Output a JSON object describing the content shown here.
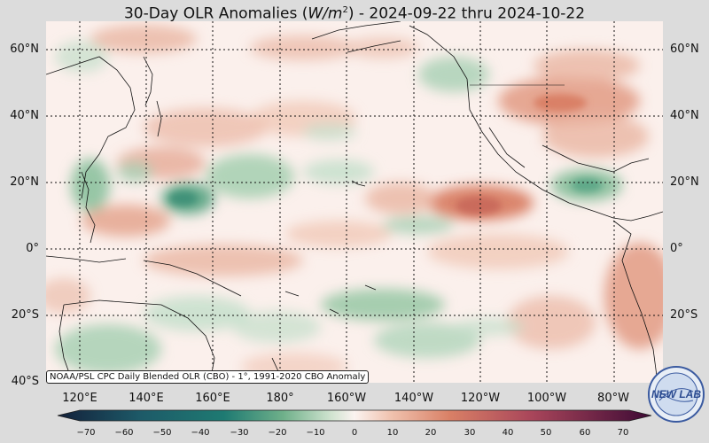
{
  "header": {
    "title_prefix": "30-Day OLR Anomalies (",
    "unit_base": "W/m",
    "unit_exp": "2",
    "title_suffix": ") - 2024-09-22 thru 2024-10-22"
  },
  "map": {
    "lat_labels": [
      "60°N",
      "40°N",
      "20°N",
      "0°",
      "20°S",
      "40°S"
    ],
    "lon_labels": [
      "120°E",
      "140°E",
      "160°E",
      "180°",
      "160°W",
      "140°W",
      "120°W",
      "100°W",
      "80°W"
    ],
    "credit": "NOAA/PSL CPC Daily Blended OLR (CBO) - 1°, 1991-2020 CBO Anomaly",
    "logo_text": "NEW LAB",
    "anomaly_regions": [
      {
        "name": "west-pacific-warm-pool",
        "sign": "negative",
        "level": -20
      },
      {
        "name": "south-pacific-convergence-zone",
        "sign": "negative",
        "level": -15
      },
      {
        "name": "gulf-of-mexico",
        "sign": "negative",
        "level": -20
      },
      {
        "name": "eastern-pacific-itcz-north",
        "sign": "positive",
        "level": 30
      },
      {
        "name": "northeast-pacific",
        "sign": "positive",
        "level": 20
      },
      {
        "name": "south-america-west",
        "sign": "positive",
        "level": 20
      }
    ]
  },
  "colorbar": {
    "ticks": [
      "−70",
      "−60",
      "−50",
      "−40",
      "−30",
      "−20",
      "−10",
      "0",
      "10",
      "20",
      "30",
      "40",
      "50",
      "60",
      "70"
    ],
    "range": [
      -75,
      75
    ],
    "colors": {
      "min": "#13203a",
      "strong_negative": "#1e7a72",
      "moderate_negative": "#6fb08a",
      "weak_negative": "#cfe3cf",
      "neutral": "#fbf3f0",
      "weak_positive": "#f0c3b0",
      "moderate_positive": "#d98066",
      "strong_positive": "#a8455a",
      "max": "#3d0a35"
    }
  }
}
